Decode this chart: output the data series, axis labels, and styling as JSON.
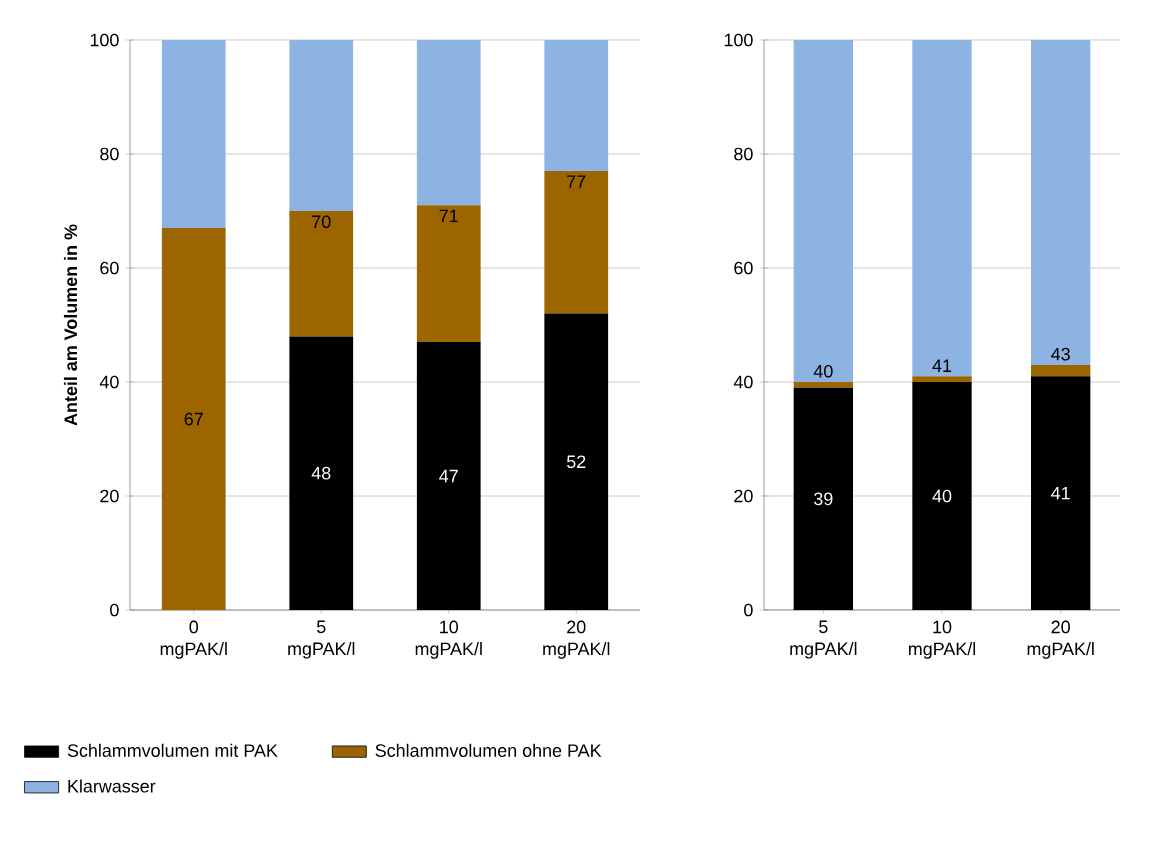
{
  "chart_data": [
    {
      "type": "bar",
      "stacked": true,
      "ylabel": "Anteil am Volumen in %",
      "categories": [
        "0 mgPAK/l",
        "5 mgPAK/l",
        "10 mgPAK/l",
        "20 mgPAK/l"
      ],
      "ylim": [
        0,
        100
      ],
      "yticks": [
        0,
        20,
        40,
        60,
        80,
        100
      ],
      "grid": "y",
      "legend": "bottom",
      "series": [
        {
          "name": "Schlammvolumen mit PAK",
          "color": "#000000",
          "values": [
            0,
            48,
            47,
            52
          ],
          "value_labels": [
            null,
            "48",
            "47",
            "52"
          ]
        },
        {
          "name": "Schlammvolumen ohne PAK",
          "color": "#9c6500",
          "values": [
            67,
            22,
            24,
            25
          ],
          "value_labels": [
            "67",
            null,
            null,
            null
          ]
        },
        {
          "name": "Klarwasser",
          "color": "#8db3e2",
          "values": [
            33,
            30,
            29,
            23
          ]
        }
      ],
      "annotations": [
        {
          "text": "70",
          "x": "5 mgPAK/l",
          "y": 70
        },
        {
          "text": "71",
          "x": "10 mgPAK/l",
          "y": 71
        },
        {
          "text": "77",
          "x": "20 mgPAK/l",
          "y": 77
        }
      ]
    },
    {
      "type": "bar",
      "stacked": true,
      "categories": [
        "5 mgPAK/l",
        "10 mgPAK/l",
        "20 mgPAK/l"
      ],
      "ylim": [
        0,
        100
      ],
      "yticks": [
        0,
        20,
        40,
        60,
        80,
        100
      ],
      "grid": "y",
      "series": [
        {
          "color": "#000000",
          "values": [
            39,
            40,
            41
          ],
          "value_labels": [
            "39",
            "40",
            "41"
          ]
        },
        {
          "color": "#9c6500",
          "values": [
            1,
            1,
            2
          ]
        },
        {
          "color": "#8db3e2",
          "values": [
            60,
            59,
            57
          ]
        }
      ],
      "annotations": [
        {
          "text": "40",
          "x": "5 mgPAK/l",
          "y": 40
        },
        {
          "text": "41",
          "x": "10 mgPAK/l",
          "y": 41
        },
        {
          "text": "43",
          "x": "20 mgPAK/l",
          "y": 43
        }
      ]
    }
  ]
}
